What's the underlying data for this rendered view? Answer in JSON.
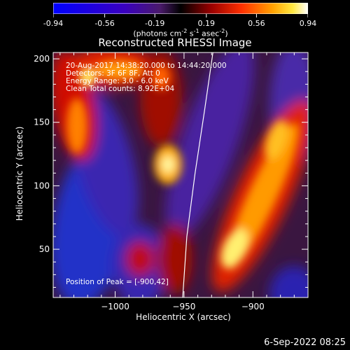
{
  "colorbar": {
    "labels": [
      "-0.94",
      "-0.56",
      "-0.19",
      "0.19",
      "0.56",
      "0.94"
    ],
    "units": {
      "base": "(photons cm",
      "exp1": "-2",
      "mid": " s",
      "exp2": "-1",
      "mid2": " asec",
      "exp3": "-2",
      "end": ")"
    }
  },
  "title": "Reconstructed RHESSI Image",
  "info": {
    "line1": "20-Aug-2017 14:38:20.000 to 14:44:20.000",
    "line2": "Detectors: 3F 6F 8F, Att 0",
    "line3": "Energy Range: 3.0 - 6.0 keV",
    "line4": "Clean      Total counts: 8.92E+04"
  },
  "peak_text": "Position of Peak = [-900,42]",
  "xlabel": "Heliocentric X (arcsec)",
  "ylabel": "Heliocentric Y (arcsec)",
  "date_stamp": "6-Sep-2022 08:25",
  "chart_data": {
    "type": "heatmap",
    "title": "Reconstructed RHESSI Image",
    "xlabel": "Heliocentric X (arcsec)",
    "ylabel": "Heliocentric Y (arcsec)",
    "xlim": [
      -1045,
      -860
    ],
    "ylim": [
      12,
      205
    ],
    "xticks": [
      -1000,
      -950,
      -900
    ],
    "yticks": [
      50,
      100,
      150,
      200
    ],
    "colorbar_range": [
      -0.94,
      0.94
    ],
    "colorbar_ticks": [
      -0.94,
      -0.56,
      -0.19,
      0.19,
      0.56,
      0.94
    ],
    "peak_position": [
      -900,
      42
    ],
    "limb_curve_x_at_y": [
      [
        -929,
        205
      ],
      [
        -935,
        160
      ],
      [
        -942,
        110
      ],
      [
        -948,
        60
      ],
      [
        -951,
        12
      ]
    ]
  }
}
